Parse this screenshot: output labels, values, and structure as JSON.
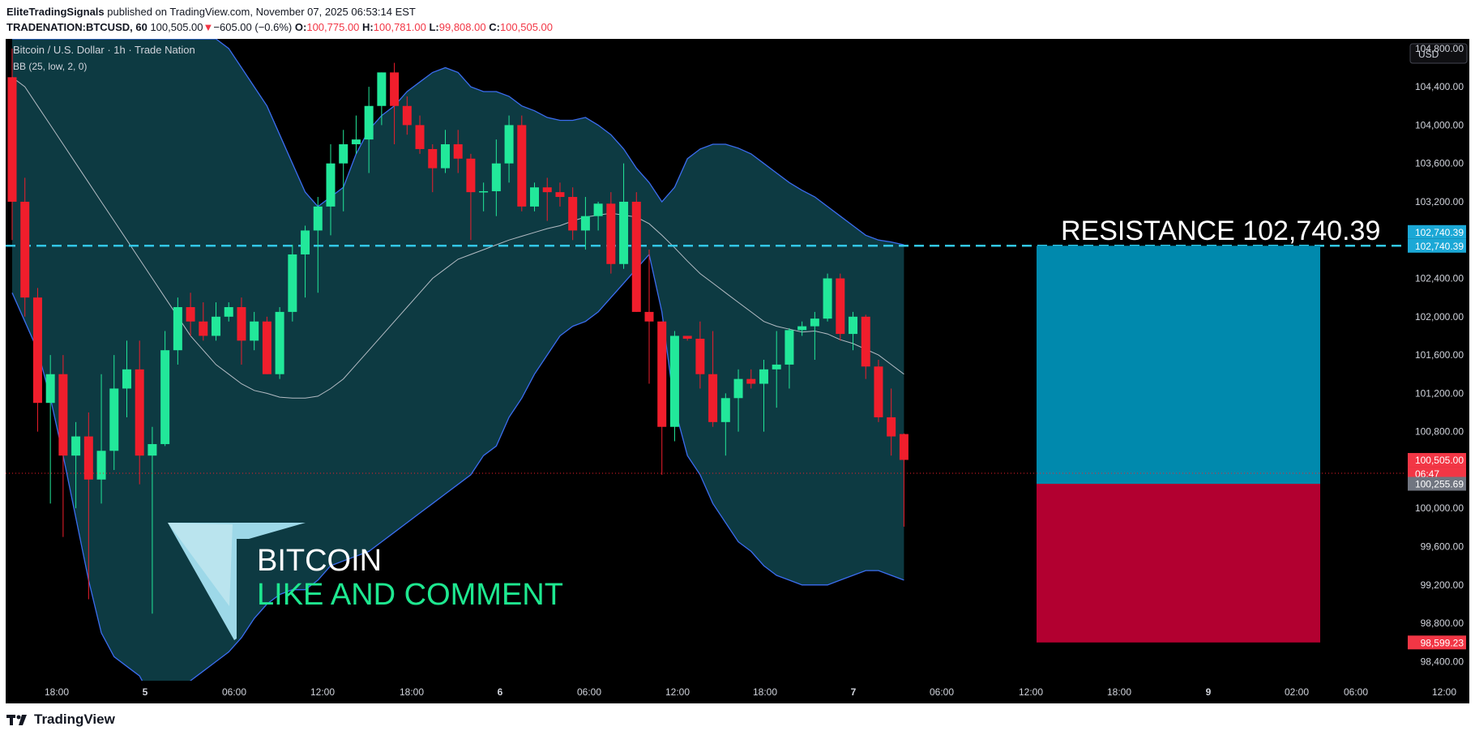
{
  "header": {
    "publisher": "EliteTradingSignals",
    "published_text": "published on TradingView.com, November 07, 2025 06:53:14 EST",
    "symbol": "TRADENATION:BTCUSD, 60",
    "last": "100,505.00",
    "change": "−605.00 (−0.6%)",
    "o_label": "O:",
    "o_value": "100,775.00",
    "h_label": "H:",
    "h_value": "100,781.00",
    "l_label": "L:",
    "l_value": "99,808.00",
    "c_label": "C:",
    "c_value": "100,505.00"
  },
  "pane": {
    "title": "Bitcoin / U.S. Dollar · 1h · Trade Nation",
    "indicator": "BB (25, low, 2, 0)",
    "currency": "USD",
    "resistance_text": "RESISTANCE  102,740.39",
    "watermark_line1": "BITCOIN",
    "watermark_line2": "LIKE AND COMMENT",
    "price_countdown": "06:47"
  },
  "footer": {
    "brand": "TradingView"
  },
  "colors": {
    "up": "#22e89a",
    "down": "#f01e2c",
    "band_fill": "#0d3a42",
    "band_line": "#3b6df0",
    "basis": "#b4bcc4",
    "resistance": "#32c6e6",
    "target_box": "#0089ad",
    "stop_box": "#b20030",
    "watermark_green": "#1ee890",
    "background": "#000000"
  },
  "chart_data": {
    "type": "candlestick",
    "title": "Bitcoin / U.S. Dollar · 1h · Trade Nation",
    "ylim": [
      98200,
      104900
    ],
    "y_ticks": [
      "104,800.00",
      "104,400.00",
      "104,000.00",
      "103,600.00",
      "103,200.00",
      "102,400.00",
      "102,000.00",
      "101,600.00",
      "101,200.00",
      "100,800.00",
      "100,000.00",
      "99,600.00",
      "99,200.00",
      "98,800.00",
      "98,400.00"
    ],
    "x_ticks": [
      "18:00",
      "5",
      "06:00",
      "12:00",
      "18:00",
      "6",
      "06:00",
      "12:00",
      "18:00",
      "7",
      "06:00",
      "12:00",
      "18:00",
      "9",
      "02:00",
      "06:00",
      "12:00"
    ],
    "candles": [
      {
        "o": 104500,
        "h": 104800,
        "l": 102800,
        "c": 103200
      },
      {
        "o": 103200,
        "h": 103450,
        "l": 102000,
        "c": 102200
      },
      {
        "o": 102200,
        "h": 102300,
        "l": 100800,
        "c": 101100
      },
      {
        "o": 101100,
        "h": 101600,
        "l": 100050,
        "c": 101400
      },
      {
        "o": 101400,
        "h": 101600,
        "l": 99700,
        "c": 100550
      },
      {
        "o": 100550,
        "h": 100900,
        "l": 100000,
        "c": 100750
      },
      {
        "o": 100750,
        "h": 101000,
        "l": 99050,
        "c": 100300
      },
      {
        "o": 100300,
        "h": 101400,
        "l": 100050,
        "c": 100600
      },
      {
        "o": 100600,
        "h": 101600,
        "l": 100400,
        "c": 101250
      },
      {
        "o": 101250,
        "h": 101750,
        "l": 100950,
        "c": 101450
      },
      {
        "o": 101450,
        "h": 101750,
        "l": 100250,
        "c": 100550
      },
      {
        "o": 100550,
        "h": 100850,
        "l": 98900,
        "c": 100670
      },
      {
        "o": 100670,
        "h": 101850,
        "l": 100650,
        "c": 101650
      },
      {
        "o": 101650,
        "h": 102200,
        "l": 101500,
        "c": 102100
      },
      {
        "o": 102100,
        "h": 102250,
        "l": 101800,
        "c": 101950
      },
      {
        "o": 101950,
        "h": 102150,
        "l": 101750,
        "c": 101800
      },
      {
        "o": 101800,
        "h": 102150,
        "l": 101750,
        "c": 102000
      },
      {
        "o": 102000,
        "h": 102150,
        "l": 101950,
        "c": 102100
      },
      {
        "o": 102100,
        "h": 102200,
        "l": 101500,
        "c": 101750
      },
      {
        "o": 101750,
        "h": 102050,
        "l": 101650,
        "c": 101950
      },
      {
        "o": 101950,
        "h": 102000,
        "l": 101400,
        "c": 101400
      },
      {
        "o": 101400,
        "h": 102100,
        "l": 101350,
        "c": 102050
      },
      {
        "o": 102050,
        "h": 102750,
        "l": 101950,
        "c": 102650
      },
      {
        "o": 102650,
        "h": 102950,
        "l": 102200,
        "c": 102900
      },
      {
        "o": 102900,
        "h": 103250,
        "l": 102250,
        "c": 103150
      },
      {
        "o": 103150,
        "h": 103800,
        "l": 102850,
        "c": 103600
      },
      {
        "o": 103600,
        "h": 103950,
        "l": 103100,
        "c": 103800
      },
      {
        "o": 103800,
        "h": 104100,
        "l": 103700,
        "c": 103850
      },
      {
        "o": 103850,
        "h": 104400,
        "l": 103500,
        "c": 104200
      },
      {
        "o": 104200,
        "h": 104550,
        "l": 104000,
        "c": 104550
      },
      {
        "o": 104550,
        "h": 104650,
        "l": 103800,
        "c": 104200
      },
      {
        "o": 104200,
        "h": 104300,
        "l": 103900,
        "c": 104000
      },
      {
        "o": 104000,
        "h": 104100,
        "l": 103700,
        "c": 103750
      },
      {
        "o": 103750,
        "h": 103800,
        "l": 103300,
        "c": 103550
      },
      {
        "o": 103550,
        "h": 103950,
        "l": 103500,
        "c": 103800
      },
      {
        "o": 103800,
        "h": 103950,
        "l": 103500,
        "c": 103650
      },
      {
        "o": 103650,
        "h": 103700,
        "l": 102800,
        "c": 103300
      },
      {
        "o": 103300,
        "h": 103400,
        "l": 103100,
        "c": 103310
      },
      {
        "o": 103310,
        "h": 103850,
        "l": 103050,
        "c": 103600
      },
      {
        "o": 103600,
        "h": 104100,
        "l": 103400,
        "c": 104000
      },
      {
        "o": 104000,
        "h": 104100,
        "l": 103100,
        "c": 103150
      },
      {
        "o": 103150,
        "h": 103400,
        "l": 103100,
        "c": 103350
      },
      {
        "o": 103350,
        "h": 103450,
        "l": 103000,
        "c": 103300
      },
      {
        "o": 103300,
        "h": 103400,
        "l": 103150,
        "c": 103250
      },
      {
        "o": 103250,
        "h": 103350,
        "l": 102800,
        "c": 102900
      },
      {
        "o": 102900,
        "h": 103250,
        "l": 102700,
        "c": 103050
      },
      {
        "o": 103050,
        "h": 103200,
        "l": 102900,
        "c": 103180
      },
      {
        "o": 103180,
        "h": 103300,
        "l": 102450,
        "c": 102550
      },
      {
        "o": 102550,
        "h": 103600,
        "l": 102500,
        "c": 103200
      },
      {
        "o": 103200,
        "h": 103300,
        "l": 102050,
        "c": 102050
      },
      {
        "o": 102050,
        "h": 102700,
        "l": 101300,
        "c": 101950
      },
      {
        "o": 101950,
        "h": 101950,
        "l": 100350,
        "c": 100850
      },
      {
        "o": 100850,
        "h": 101850,
        "l": 100700,
        "c": 101800
      },
      {
        "o": 101800,
        "h": 101800,
        "l": 101750,
        "c": 101770
      },
      {
        "o": 101770,
        "h": 101950,
        "l": 101250,
        "c": 101400
      },
      {
        "o": 101400,
        "h": 101850,
        "l": 100850,
        "c": 100900
      },
      {
        "o": 100900,
        "h": 101200,
        "l": 100550,
        "c": 101150
      },
      {
        "o": 101150,
        "h": 101450,
        "l": 100800,
        "c": 101350
      },
      {
        "o": 101350,
        "h": 101450,
        "l": 101250,
        "c": 101300
      },
      {
        "o": 101300,
        "h": 101550,
        "l": 100800,
        "c": 101450
      },
      {
        "o": 101450,
        "h": 101850,
        "l": 101050,
        "c": 101500
      },
      {
        "o": 101500,
        "h": 101880,
        "l": 101250,
        "c": 101860
      },
      {
        "o": 101860,
        "h": 101950,
        "l": 101800,
        "c": 101900
      },
      {
        "o": 101900,
        "h": 102050,
        "l": 101550,
        "c": 101980
      },
      {
        "o": 101980,
        "h": 102450,
        "l": 101950,
        "c": 102400
      },
      {
        "o": 102400,
        "h": 102450,
        "l": 101750,
        "c": 101820
      },
      {
        "o": 101820,
        "h": 102050,
        "l": 101650,
        "c": 102000
      },
      {
        "o": 102000,
        "h": 102020,
        "l": 101350,
        "c": 101480
      },
      {
        "o": 101480,
        "h": 101550,
        "l": 100900,
        "c": 100950
      },
      {
        "o": 100950,
        "h": 101250,
        "l": 100550,
        "c": 100750
      },
      {
        "o": 100775,
        "h": 100781,
        "l": 99808,
        "c": 100505
      }
    ],
    "bollinger": {
      "upper": [
        104900,
        104900,
        104900,
        104900,
        104900,
        104900,
        104900,
        104900,
        104900,
        104900,
        104900,
        104900,
        104900,
        104900,
        104900,
        104900,
        104900,
        104800,
        104600,
        104400,
        104200,
        103900,
        103600,
        103300,
        103150,
        103250,
        103350,
        103700,
        103950,
        104100,
        104200,
        104350,
        104450,
        104550,
        104600,
        104550,
        104400,
        104350,
        104350,
        104300,
        104200,
        104150,
        104080,
        104050,
        104050,
        104080,
        104000,
        103900,
        103750,
        103550,
        103400,
        103200,
        103350,
        103650,
        103750,
        103800,
        103800,
        103760,
        103700,
        103600,
        103500,
        103400,
        103320,
        103250,
        103150,
        103050,
        102950,
        102850,
        102800,
        102780,
        102750
      ],
      "lower": [
        102250,
        101950,
        101650,
        101150,
        100550,
        99900,
        99250,
        98700,
        98450,
        98350,
        98250,
        98000,
        98000,
        98100,
        98200,
        98300,
        98400,
        98500,
        98650,
        98850,
        99000,
        99100,
        99150,
        99150,
        99250,
        99400,
        99450,
        99500,
        99550,
        99650,
        99750,
        99850,
        99950,
        100050,
        100150,
        100250,
        100350,
        100550,
        100650,
        100950,
        101150,
        101400,
        101600,
        101800,
        101900,
        101950,
        102050,
        102200,
        102350,
        102500,
        102650,
        102050,
        101050,
        100550,
        100350,
        100050,
        99850,
        99650,
        99550,
        99400,
        99300,
        99250,
        99200,
        99200,
        99200,
        99250,
        99300,
        99350,
        99350,
        99300,
        99250
      ],
      "basis": [
        104500,
        104400,
        104200,
        104000,
        103800,
        103600,
        103400,
        103200,
        103000,
        102800,
        102600,
        102400,
        102200,
        102000,
        101800,
        101650,
        101500,
        101400,
        101300,
        101230,
        101200,
        101160,
        101150,
        101150,
        101170,
        101250,
        101350,
        101500,
        101650,
        101800,
        101950,
        102100,
        102250,
        102400,
        102500,
        102600,
        102650,
        102700,
        102750,
        102800,
        102840,
        102880,
        102920,
        102950,
        103000,
        103040,
        103060,
        103080,
        103060,
        103040,
        102970,
        102850,
        102720,
        102580,
        102450,
        102350,
        102250,
        102150,
        102050,
        101950,
        101900,
        101870,
        101840,
        101850,
        101820,
        101760,
        101720,
        101660,
        101600,
        101500,
        101400
      ]
    },
    "resistance": 102740.39,
    "position_box": {
      "stop": 102740.39,
      "entry": 100255.69,
      "target": 98599.23
    },
    "price_labels": {
      "resistance": "102,740.39",
      "current": "100,505.00",
      "entry": "100,255.69",
      "target": "98,599.23"
    }
  }
}
